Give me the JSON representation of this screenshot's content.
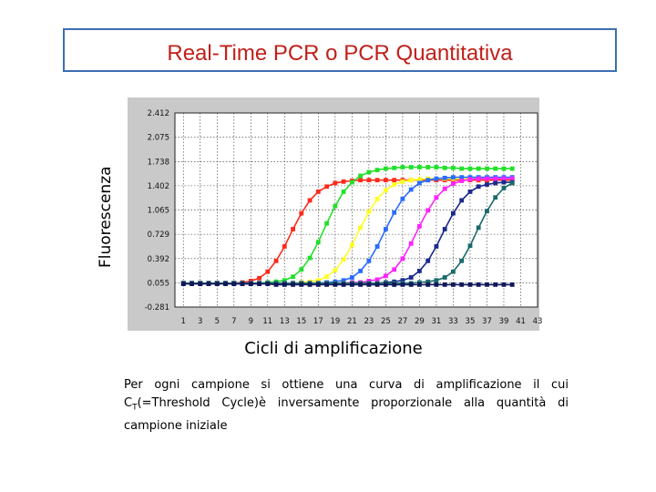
{
  "title": "Real-Time PCR o PCR Quantitativa",
  "caption": {
    "part1": "Per ogni campione si ottiene una curva di amplificazione il cui C",
    "sub": "T",
    "part2": "(=Threshold Cycle)è inversamente proporzionale alla quantità di campione iniziale"
  },
  "chart_data": {
    "type": "line",
    "title": "",
    "xlabel": "Cicli di amplificazione",
    "ylabel": "Fluorescenza",
    "xlim": [
      0,
      43
    ],
    "ylim": [
      -0.281,
      2.412
    ],
    "x_ticks": [
      "1",
      "3",
      "5",
      "7",
      "9",
      "11",
      "13",
      "15",
      "17",
      "19",
      "21",
      "23",
      "25",
      "27",
      "29",
      "31",
      "33",
      "35",
      "37",
      "39",
      "41",
      "43"
    ],
    "y_ticks": [
      "2.412",
      "2.075",
      "1.738",
      "1.402",
      "1.065",
      "0.729",
      "0.392",
      "0.055",
      "-0.281"
    ],
    "grid": true,
    "series": [
      {
        "color": "#ff2a1a",
        "midpoint": 16.5,
        "plateau": 1.48,
        "values": [
          0.05,
          0.05,
          0.05,
          0.05,
          0.05,
          0.05,
          0.05,
          0.06,
          0.08,
          0.12,
          0.21,
          0.36,
          0.56,
          0.8,
          1.02,
          1.2,
          1.32,
          1.39,
          1.44,
          1.46,
          1.47,
          1.48,
          1.48,
          1.48,
          1.48,
          1.48,
          1.48,
          1.48,
          1.48,
          1.48,
          1.48,
          1.48,
          1.48,
          1.48,
          1.48,
          1.48,
          1.48,
          1.48,
          1.48,
          1.48
        ]
      },
      {
        "color": "#22e02a",
        "midpoint": 19.5,
        "plateau": 1.66,
        "values": [
          0.05,
          0.05,
          0.05,
          0.05,
          0.05,
          0.05,
          0.05,
          0.05,
          0.05,
          0.05,
          0.06,
          0.07,
          0.09,
          0.14,
          0.24,
          0.4,
          0.62,
          0.88,
          1.12,
          1.32,
          1.45,
          1.54,
          1.59,
          1.62,
          1.64,
          1.65,
          1.66,
          1.66,
          1.66,
          1.66,
          1.66,
          1.65,
          1.65,
          1.64,
          1.64,
          1.64,
          1.64,
          1.64,
          1.64,
          1.64
        ]
      },
      {
        "color": "#ffff22",
        "midpoint": 23.0,
        "plateau": 1.5,
        "values": [
          0.05,
          0.05,
          0.05,
          0.05,
          0.05,
          0.05,
          0.05,
          0.05,
          0.05,
          0.05,
          0.05,
          0.05,
          0.05,
          0.05,
          0.06,
          0.07,
          0.09,
          0.14,
          0.23,
          0.38,
          0.58,
          0.82,
          1.04,
          1.22,
          1.34,
          1.42,
          1.46,
          1.48,
          1.49,
          1.5,
          1.5,
          1.5,
          1.5,
          1.5,
          1.5,
          1.5,
          1.5,
          1.5,
          1.5,
          1.5
        ]
      },
      {
        "color": "#2a6cff",
        "midpoint": 26.0,
        "plateau": 1.52,
        "values": [
          0.05,
          0.05,
          0.05,
          0.05,
          0.05,
          0.05,
          0.05,
          0.05,
          0.05,
          0.05,
          0.05,
          0.05,
          0.05,
          0.05,
          0.05,
          0.05,
          0.05,
          0.06,
          0.07,
          0.09,
          0.13,
          0.22,
          0.36,
          0.56,
          0.8,
          1.03,
          1.22,
          1.35,
          1.44,
          1.48,
          1.5,
          1.51,
          1.52,
          1.52,
          1.52,
          1.52,
          1.52,
          1.52,
          1.52,
          1.52
        ]
      },
      {
        "color": "#ff22ff",
        "midpoint": 29.0,
        "plateau": 1.5,
        "values": [
          0.05,
          0.05,
          0.05,
          0.05,
          0.05,
          0.05,
          0.05,
          0.05,
          0.05,
          0.05,
          0.05,
          0.05,
          0.05,
          0.05,
          0.05,
          0.05,
          0.05,
          0.05,
          0.05,
          0.05,
          0.06,
          0.06,
          0.08,
          0.1,
          0.15,
          0.24,
          0.39,
          0.6,
          0.84,
          1.06,
          1.24,
          1.36,
          1.43,
          1.47,
          1.49,
          1.5,
          1.5,
          1.5,
          1.5,
          1.5
        ]
      },
      {
        "color": "#1a2a8c",
        "midpoint": 32.0,
        "plateau": 1.45,
        "values": [
          0.05,
          0.05,
          0.05,
          0.05,
          0.05,
          0.05,
          0.05,
          0.05,
          0.05,
          0.05,
          0.05,
          0.05,
          0.05,
          0.05,
          0.05,
          0.05,
          0.05,
          0.05,
          0.05,
          0.05,
          0.05,
          0.05,
          0.05,
          0.05,
          0.06,
          0.07,
          0.09,
          0.13,
          0.22,
          0.36,
          0.56,
          0.8,
          1.02,
          1.2,
          1.32,
          1.39,
          1.42,
          1.44,
          1.45,
          1.45
        ]
      },
      {
        "color": "#1a6a6a",
        "midpoint": 35.5,
        "plateau": 1.48,
        "values": [
          0.05,
          0.05,
          0.05,
          0.05,
          0.05,
          0.05,
          0.05,
          0.05,
          0.05,
          0.05,
          0.05,
          0.05,
          0.05,
          0.05,
          0.05,
          0.05,
          0.05,
          0.05,
          0.05,
          0.05,
          0.05,
          0.05,
          0.05,
          0.05,
          0.05,
          0.05,
          0.05,
          0.05,
          0.06,
          0.07,
          0.09,
          0.13,
          0.21,
          0.36,
          0.57,
          0.82,
          1.05,
          1.24,
          1.37,
          1.44
        ]
      },
      {
        "color": "#10185a",
        "midpoint": 99,
        "plateau": 0.02,
        "values": [
          0.04,
          0.04,
          0.04,
          0.04,
          0.04,
          0.04,
          0.04,
          0.04,
          0.04,
          0.04,
          0.04,
          0.03,
          0.03,
          0.03,
          0.03,
          0.03,
          0.03,
          0.03,
          0.03,
          0.03,
          0.03,
          0.03,
          0.03,
          0.03,
          0.03,
          0.03,
          0.03,
          0.03,
          0.03,
          0.03,
          0.03,
          0.03,
          0.03,
          0.03,
          0.03,
          0.03,
          0.03,
          0.03,
          0.03,
          0.03
        ]
      }
    ],
    "x": [
      1,
      2,
      3,
      4,
      5,
      6,
      7,
      8,
      9,
      10,
      11,
      12,
      13,
      14,
      15,
      16,
      17,
      18,
      19,
      20,
      21,
      22,
      23,
      24,
      25,
      26,
      27,
      28,
      29,
      30,
      31,
      32,
      33,
      34,
      35,
      36,
      37,
      38,
      39,
      40
    ]
  }
}
